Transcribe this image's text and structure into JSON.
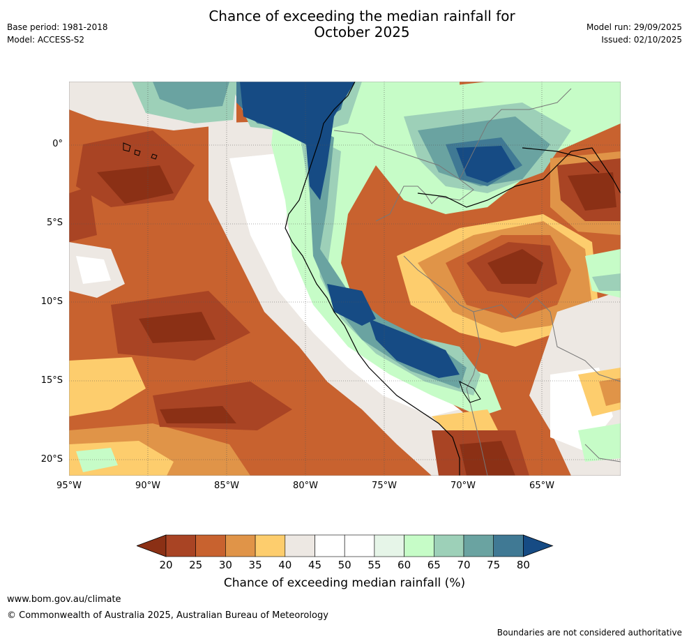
{
  "header": {
    "title_line1": "Chance of exceeding the median rainfall for",
    "title_line2": "October 2025",
    "base_period": "Base period: 1981-2018",
    "model": "Model: ACCESS-S2",
    "model_run": "Model run: 29/09/2025",
    "issued": "Issued: 02/10/2025"
  },
  "map": {
    "lat_labels": [
      "0°",
      "5°S",
      "10°S",
      "15°S",
      "20°S"
    ],
    "lon_labels": [
      "95°W",
      "90°W",
      "85°W",
      "80°W",
      "75°W",
      "70°W",
      "65°W"
    ],
    "regions": [
      {
        "name": "pacific-west-dry",
        "pct": 25
      },
      {
        "name": "coast-dry-south",
        "pct": 20
      },
      {
        "name": "amazon-central-dry",
        "pct": 20
      },
      {
        "name": "colombia-wet",
        "pct": 80
      },
      {
        "name": "andes-wet-belt",
        "pct": 80
      },
      {
        "name": "amazon-north-wet",
        "pct": 80
      },
      {
        "name": "brazil-ne-dry",
        "pct": 20
      }
    ]
  },
  "colorbar": {
    "ticks": [
      "20",
      "25",
      "30",
      "35",
      "40",
      "45",
      "50",
      "55",
      "60",
      "65",
      "70",
      "75",
      "80"
    ],
    "colors": [
      "#8b3015",
      "#a94424",
      "#c8622f",
      "#e09448",
      "#fdcd6d",
      "#ede8e3",
      "#ffffff",
      "#ffffff",
      "#e6f5e8",
      "#c6fcc7",
      "#9dd0b8",
      "#6aa3a1",
      "#407994",
      "#164b84"
    ],
    "label": "Chance of exceeding median rainfall (%)"
  },
  "footer": {
    "url": "www.bom.gov.au/climate",
    "copyright": "© Commonwealth of Australia 2025, Australian Bureau of Meteorology",
    "disclaimer": "Boundaries are not considered authoritative"
  }
}
